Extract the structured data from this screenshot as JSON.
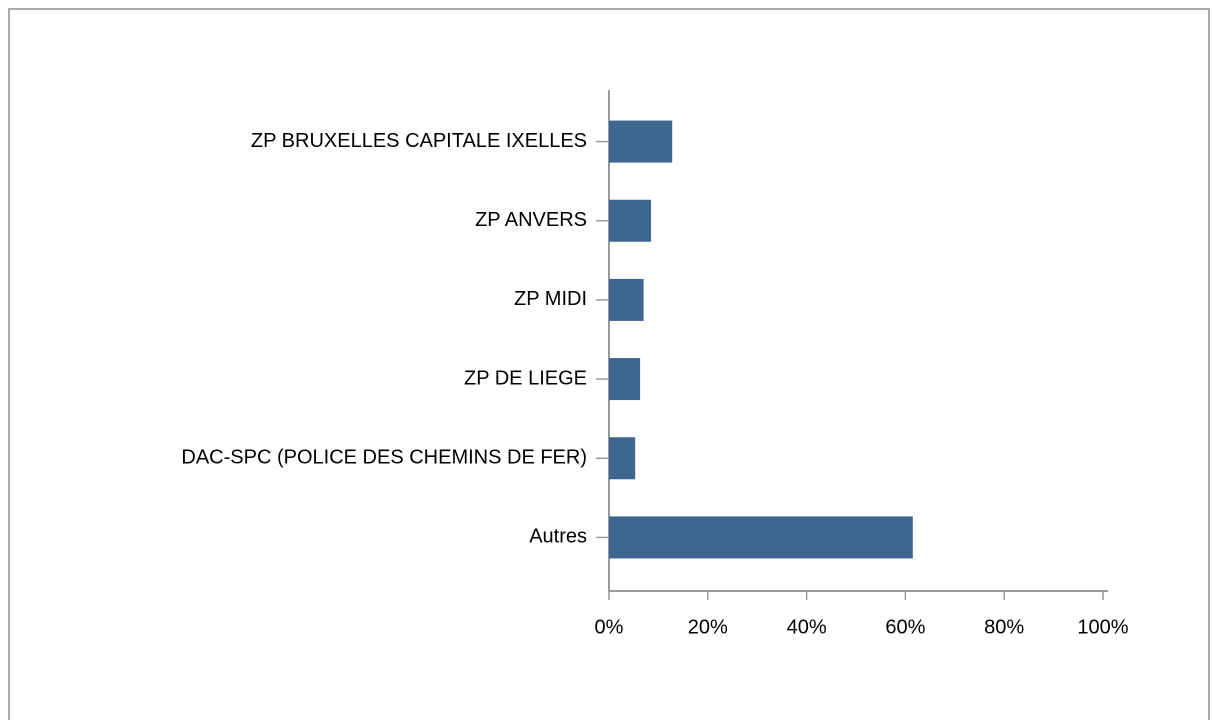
{
  "chart_data": {
    "type": "bar",
    "orientation": "horizontal",
    "categories": [
      "ZP BRUXELLES CAPITALE IXELLES",
      "ZP ANVERS",
      "ZP MIDI",
      "ZP DE LIEGE",
      "DAC-SPC (POLICE DES CHEMINS DE FER)",
      "Autres"
    ],
    "values": [
      12.8,
      8.5,
      7,
      6.3,
      5.3,
      61.5
    ],
    "color": "#3d6690",
    "xlim": [
      0,
      100
    ],
    "xticks": [
      {
        "value": 0,
        "label": "0%"
      },
      {
        "value": 20,
        "label": "20%"
      },
      {
        "value": 40,
        "label": "40%"
      },
      {
        "value": 60,
        "label": "60%"
      },
      {
        "value": 80,
        "label": "80%"
      },
      {
        "value": 100,
        "label": "100%"
      }
    ],
    "grid": false
  }
}
